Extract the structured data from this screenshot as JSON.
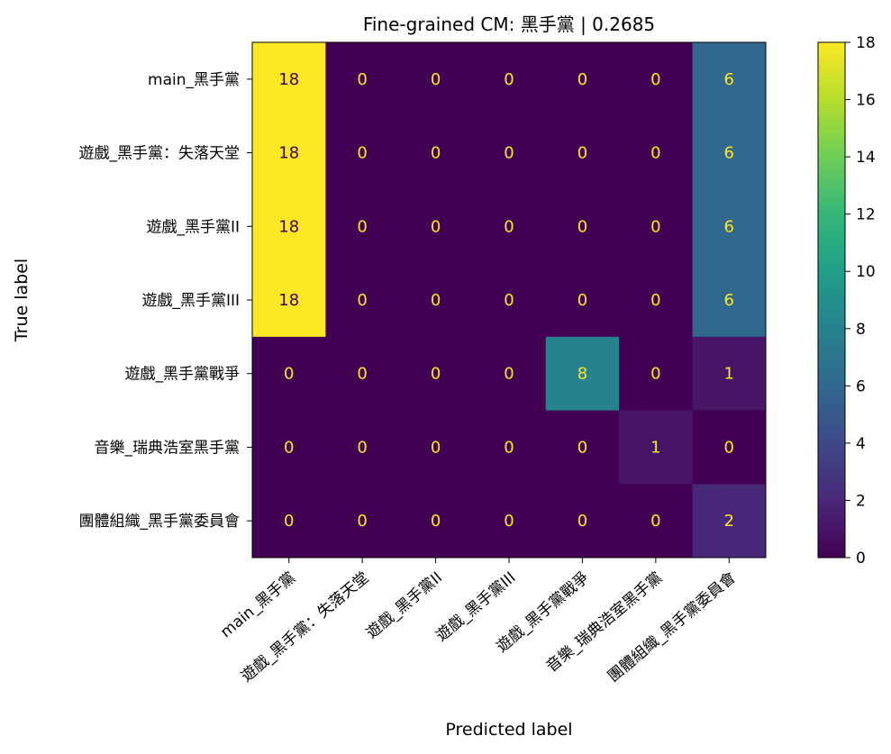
{
  "chart_data": {
    "type": "heatmap",
    "title": "Fine-grained CM: 黑手黨 | 0.2685",
    "xlabel": "Predicted label",
    "ylabel": "True label",
    "row_labels": [
      "main_黑手黨",
      "遊戲_黑手黨：失落天堂",
      "遊戲_黑手黨II",
      "遊戲_黑手黨III",
      "遊戲_黑手黨戰爭",
      "音樂_瑞典浩室黑手黨",
      "團體組織_黑手黨委員會"
    ],
    "col_labels": [
      "main_黑手黨",
      "遊戲_黑手黨：失落天堂",
      "遊戲_黑手黨II",
      "遊戲_黑手黨III",
      "遊戲_黑手黨戰爭",
      "音樂_瑞典浩室黑手黨",
      "團體組織_黑手黨委員會"
    ],
    "values": [
      [
        18,
        0,
        0,
        0,
        0,
        0,
        6
      ],
      [
        18,
        0,
        0,
        0,
        0,
        0,
        6
      ],
      [
        18,
        0,
        0,
        0,
        0,
        0,
        6
      ],
      [
        18,
        0,
        0,
        0,
        0,
        0,
        6
      ],
      [
        0,
        0,
        0,
        0,
        8,
        0,
        1
      ],
      [
        0,
        0,
        0,
        0,
        0,
        1,
        0
      ],
      [
        0,
        0,
        0,
        0,
        0,
        0,
        2
      ]
    ],
    "colormap": "viridis",
    "vmin": 0,
    "vmax": 18,
    "colorbar_ticks": [
      0,
      2,
      4,
      6,
      8,
      10,
      12,
      14,
      16,
      18
    ],
    "cell_text_color_light": "#fde725",
    "cell_text_color_dark": "#440154"
  }
}
